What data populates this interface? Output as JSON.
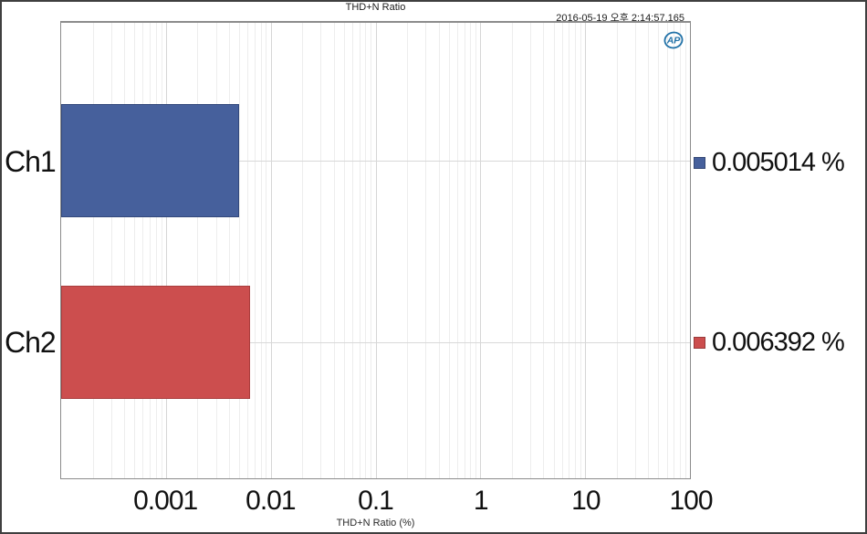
{
  "header": {
    "title": "THD+N Ratio",
    "timestamp": "2016-05-19 오후 2:14:57.165"
  },
  "logo": {
    "text": "AP",
    "color": "#2272A8"
  },
  "chart_data": {
    "type": "bar",
    "orientation": "horizontal",
    "title": "THD+N Ratio",
    "xlabel": "THD+N Ratio (%)",
    "x_scale": "log",
    "xlim": [
      0.0001,
      100
    ],
    "xticks": [
      0.001,
      0.01,
      0.1,
      1,
      10,
      100
    ],
    "xtick_labels": [
      "0.001",
      "0.01",
      "0.1",
      "1",
      "10",
      "100"
    ],
    "categories": [
      "Ch1",
      "Ch2"
    ],
    "values": [
      0.005014,
      0.006392
    ],
    "value_labels": [
      "0.005014 %",
      "0.006392 %"
    ],
    "colors": [
      "#46609C",
      "#CC4E4E"
    ],
    "bar_border_colors": [
      "#33497C",
      "#A93D3D"
    ],
    "grid": true,
    "legend_position": "right"
  }
}
